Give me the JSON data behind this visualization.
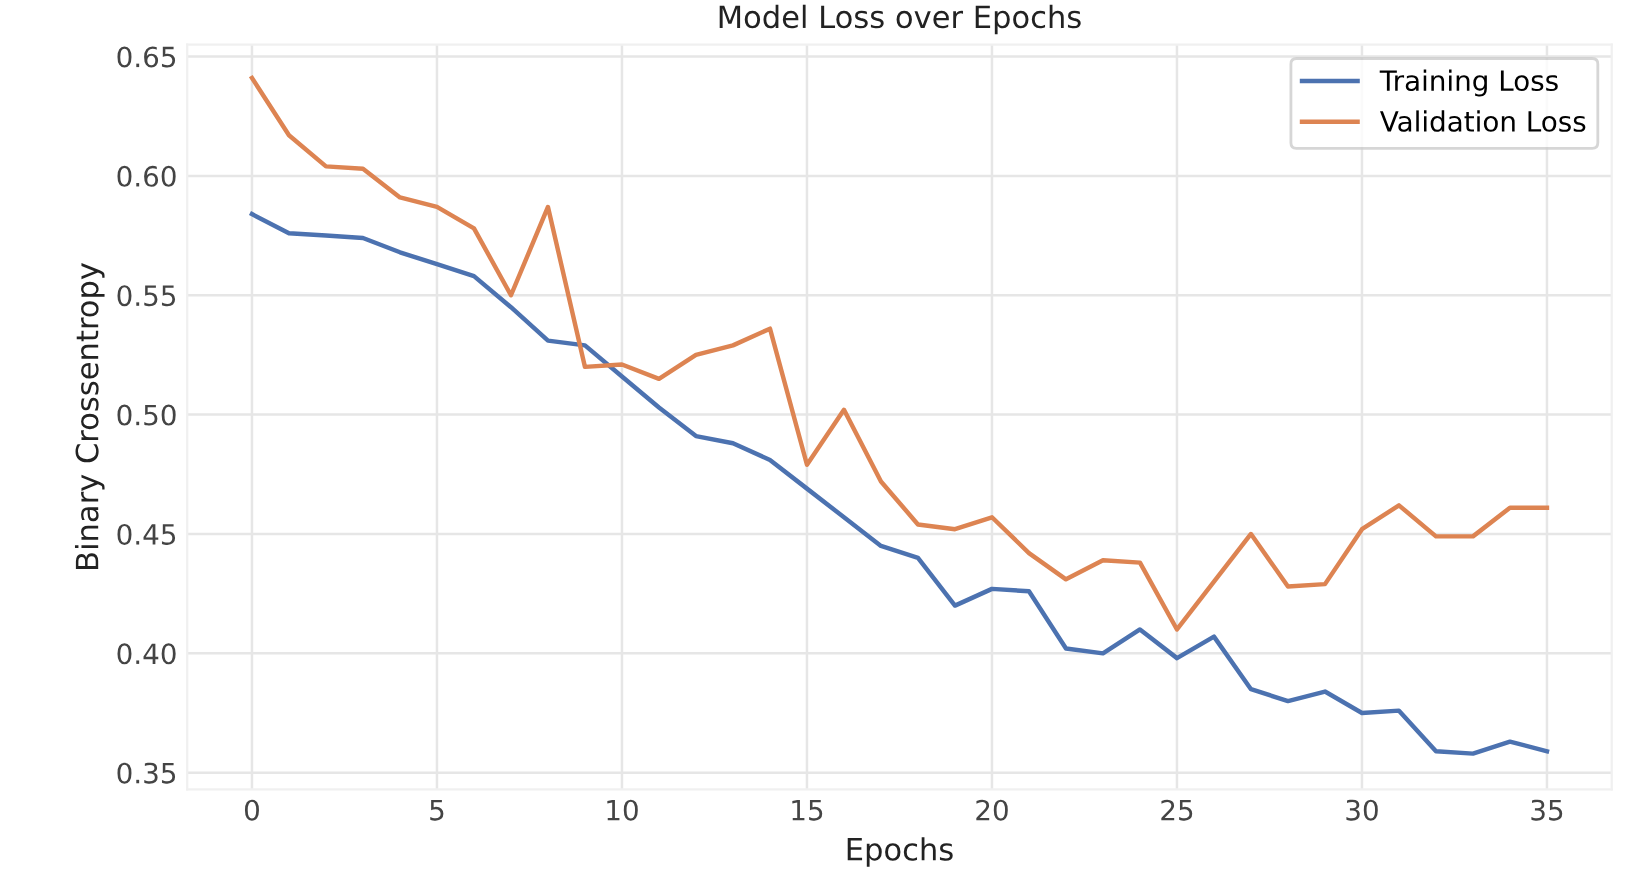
{
  "chart_data": {
    "type": "line",
    "title": "Model Loss over Epochs",
    "xlabel": "Epochs",
    "ylabel": "Binary Crossentropy",
    "x": [
      0,
      1,
      2,
      3,
      4,
      5,
      6,
      7,
      8,
      9,
      10,
      11,
      12,
      13,
      14,
      15,
      16,
      17,
      18,
      19,
      20,
      21,
      22,
      23,
      24,
      25,
      26,
      27,
      28,
      29,
      30,
      31,
      32,
      33,
      34,
      35
    ],
    "series": [
      {
        "name": "Training Loss",
        "color": "#4c72b0",
        "values": [
          0.584,
          0.576,
          0.575,
          0.574,
          0.568,
          0.563,
          0.558,
          0.545,
          0.531,
          0.529,
          0.516,
          0.503,
          0.491,
          0.488,
          0.481,
          0.469,
          0.457,
          0.445,
          0.44,
          0.42,
          0.427,
          0.426,
          0.402,
          0.4,
          0.41,
          0.398,
          0.407,
          0.385,
          0.38,
          0.384,
          0.375,
          0.376,
          0.359,
          0.358,
          0.363,
          0.359
        ]
      },
      {
        "name": "Validation Loss",
        "color": "#dd8452",
        "values": [
          0.641,
          0.617,
          0.604,
          0.603,
          0.591,
          0.587,
          0.578,
          0.55,
          0.587,
          0.52,
          0.521,
          0.515,
          0.525,
          0.529,
          0.536,
          0.479,
          0.502,
          0.472,
          0.454,
          0.452,
          0.457,
          0.442,
          0.431,
          0.439,
          0.438,
          0.41,
          0.43,
          0.45,
          0.428,
          0.429,
          0.452,
          0.462,
          0.449,
          0.449,
          0.461,
          0.461
        ]
      }
    ],
    "xlim": [
      -1.75,
      36.75
    ],
    "ylim": [
      0.343,
      0.655
    ],
    "xticks": [
      0,
      5,
      10,
      15,
      20,
      25,
      30,
      35
    ],
    "yticks": [
      {
        "value": 0.35,
        "label": "0.35"
      },
      {
        "value": 0.4,
        "label": "0.40"
      },
      {
        "value": 0.45,
        "label": "0.45"
      },
      {
        "value": 0.5,
        "label": "0.50"
      },
      {
        "value": 0.55,
        "label": "0.55"
      },
      {
        "value": 0.6,
        "label": "0.60"
      },
      {
        "value": 0.65,
        "label": "0.65"
      }
    ],
    "grid": true,
    "legend": "top right",
    "marker": "none",
    "line_style": "solid"
  }
}
